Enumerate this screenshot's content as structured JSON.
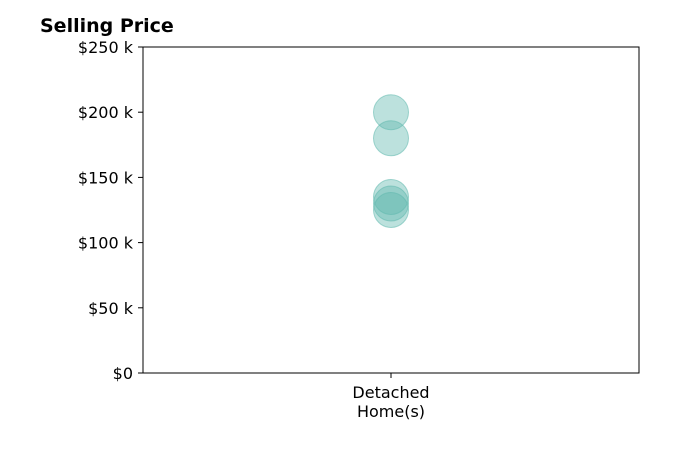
{
  "chart_data": {
    "type": "scatter",
    "title": "Selling Price",
    "categories": [
      "Detached\nHome(s)"
    ],
    "y_tick_labels": [
      "$0",
      "$50 k",
      "$100 k",
      "$150 k",
      "$200 k",
      "$250 k"
    ],
    "y_tick_values": [
      0,
      50000,
      100000,
      150000,
      200000,
      250000
    ],
    "ylim": [
      0,
      250000
    ],
    "grid": false,
    "marker_color": "#5fb8ad",
    "series": [
      {
        "category_index": 0,
        "values": [
          200000,
          180000,
          135000,
          130000,
          125000
        ]
      }
    ]
  }
}
